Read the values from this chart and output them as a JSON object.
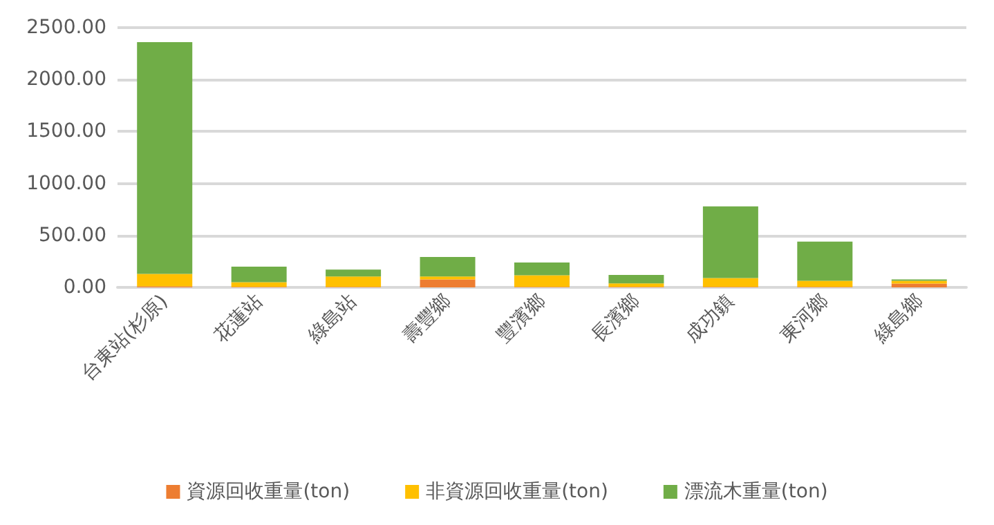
{
  "chart_data": {
    "type": "bar",
    "stacked": true,
    "categories": [
      "台東站(杉原)",
      "花蓮站",
      "綠島站",
      "壽豐鄉",
      "豐濱鄉",
      "長濱鄉",
      "成功鎮",
      "東河鄉",
      "綠島鄉"
    ],
    "series": [
      {
        "name": "資源回收重量(ton)",
        "color": "#ed7d31",
        "values": [
          10,
          5,
          5,
          77,
          5,
          5,
          5,
          5,
          36
        ]
      },
      {
        "name": "非資源回收重量(ton)",
        "color": "#ffc000",
        "values": [
          120,
          45,
          99,
          27,
          112,
          33,
          85,
          58,
          27
        ]
      },
      {
        "name": "漂流木重量(ton)",
        "color": "#70ad47",
        "values": [
          2230,
          150,
          67,
          189,
          122,
          81,
          689,
          378,
          14
        ]
      }
    ],
    "ylim": [
      0,
      2500
    ],
    "yticks": [
      {
        "value": 0,
        "label": "0.00"
      },
      {
        "value": 500,
        "label": "500.00"
      },
      {
        "value": 1000,
        "label": "1000.00"
      },
      {
        "value": 1500,
        "label": "1500.00"
      },
      {
        "value": 2000,
        "label": "2000.00"
      },
      {
        "value": 2500,
        "label": "2500.00"
      }
    ],
    "grid": "y",
    "legend": "bottom"
  }
}
